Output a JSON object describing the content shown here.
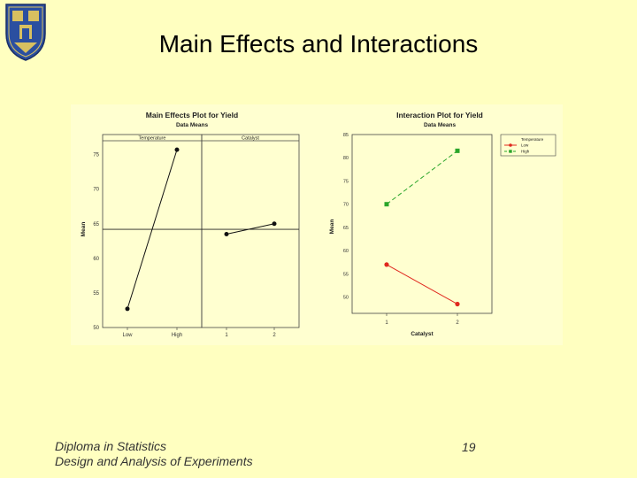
{
  "slide": {
    "title": "Main Effects and Interactions",
    "footer_line1": "Diploma in Statistics",
    "footer_line2": "Design and Analysis of Experiments",
    "page_number": "19"
  },
  "colors": {
    "background": "#ffffc0",
    "low_series": "#e0281e",
    "high_series": "#2aa52a",
    "crest_blue": "#2b4fa0"
  },
  "chart_data": [
    {
      "type": "line",
      "title": "Main Effects Plot for Yield",
      "subtitle": "Data Means",
      "ylabel": "Mean",
      "ylim": [
        50,
        77
      ],
      "yticks": [
        50,
        55,
        60,
        65,
        70,
        75
      ],
      "reference_line": 64.2,
      "panels": [
        {
          "name": "Temperature",
          "categories": [
            "Low",
            "High"
          ],
          "values": [
            52.7,
            75.7
          ]
        },
        {
          "name": "Catalyst",
          "categories": [
            "1",
            "2"
          ],
          "values": [
            63.5,
            65.0
          ]
        }
      ]
    },
    {
      "type": "line",
      "title": "Interaction Plot for Yield",
      "subtitle": "Data Means",
      "xlabel": "Catalyst",
      "ylabel": "Mean",
      "ylim": [
        46.5,
        85
      ],
      "yticks": [
        50,
        55,
        60,
        65,
        70,
        75,
        80,
        85
      ],
      "categories": [
        "1",
        "2"
      ],
      "legend_title": "Temperature",
      "legend_position": "right",
      "series": [
        {
          "name": "Low",
          "values": [
            57.0,
            48.5
          ],
          "color": "#e0281e",
          "marker": "circle",
          "dash": "solid"
        },
        {
          "name": "High",
          "values": [
            70.0,
            81.5
          ],
          "color": "#2aa52a",
          "marker": "square",
          "dash": "dashed"
        }
      ]
    }
  ]
}
